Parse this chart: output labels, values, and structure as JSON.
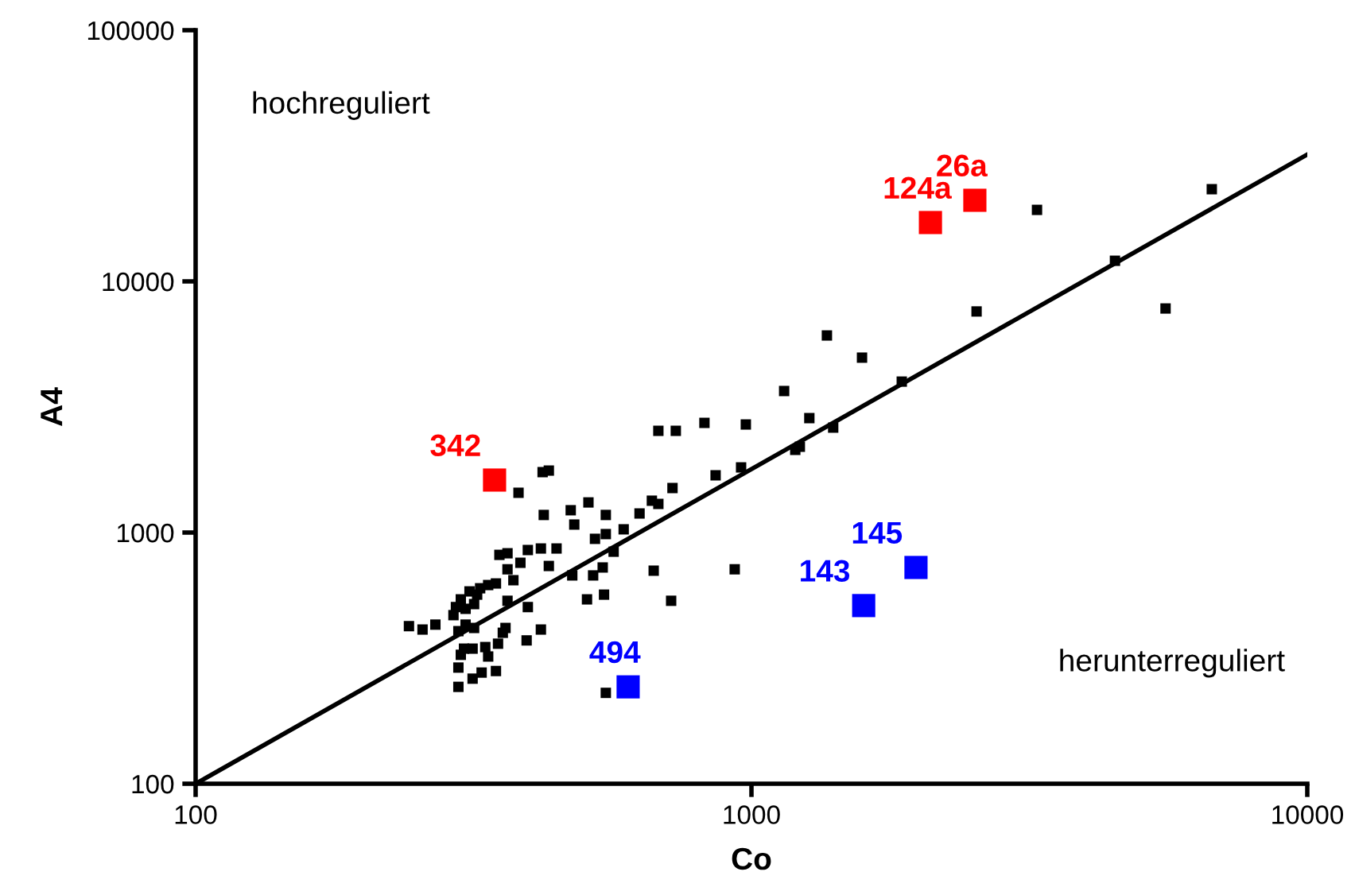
{
  "chart_data": {
    "type": "scatter",
    "xlabel": "Co",
    "ylabel": "A4",
    "log": "xy",
    "xlim": [
      100,
      10000
    ],
    "ylim": [
      100,
      100000
    ],
    "xticks": [
      100,
      1000,
      10000
    ],
    "yticks": [
      100,
      1000,
      10000,
      100000
    ],
    "grid": false,
    "marker": "square",
    "series": [
      {
        "color": "#000000",
        "x": [
          421,
          432,
          381,
          423,
          473,
          509,
          480,
          547,
          629,
          662,
          680,
          721,
          589,
          523,
          547,
          565,
          446,
          418,
          396,
          352,
          364,
          384,
          364,
          432,
          476,
          519,
          540,
          667,
          373,
          347,
          336,
          325,
          321,
          311,
          300,
          294,
          291,
          306,
          317,
          364,
          396,
          506,
          543,
          717,
          242,
          256,
          270,
          297,
          306,
          317,
          361,
          357,
          418,
          394,
          304,
          300,
          315,
          332,
          350,
          336,
          297,
          315,
          327,
          347,
          297,
          547,
          680,
          731,
          823,
          977,
          1271,
          1403,
          1199,
          1222,
          958,
          862,
          933,
          1145,
          1367,
          1581,
          1864,
          2541,
          3264,
          4508,
          5559,
          6733
        ],
        "values": [
          1740,
          1765,
          1440,
          1175,
          1227,
          1318,
          1076,
          1175,
          1191,
          1339,
          1300,
          1504,
          1030,
          944,
          986,
          839,
          864,
          864,
          852,
          815,
          827,
          758,
          714,
          736,
          675,
          675,
          726,
          705,
          646,
          627,
          618,
          600,
          566,
          583,
          542,
          505,
          469,
          497,
          519,
          535,
          505,
          542,
          566,
          535,
          424,
          411,
          430,
          405,
          430,
          417,
          417,
          399,
          411,
          372,
          345,
          326,
          345,
          350,
          361,
          321,
          290,
          262,
          277,
          281,
          243,
          230,
          2541,
          2541,
          2733,
          2693,
          2855,
          2617,
          2134,
          2196,
          1817,
          1690,
          714,
          3660,
          6090,
          4970,
          3990,
          7590,
          19260,
          12080,
          7800,
          23280
        ]
      },
      {
        "color": "#ff0000",
        "x": [
          345,
          2099,
          2523
        ],
        "values": [
          1618,
          17150,
          21030
        ]
      },
      {
        "color": "#0000ff",
        "x": [
          600,
          1592,
          1977
        ],
        "values": [
          243,
          512,
          726
        ]
      },
      {
        "type": "line",
        "marker": "none",
        "color": "#000000",
        "x": [
          100,
          10000
        ],
        "values": [
          100,
          32000
        ]
      }
    ],
    "annotations": [
      "hochreguliert",
      "herunterreguliert",
      {
        "text": "342",
        "x": 345,
        "y": 1618
      },
      {
        "text": "124a",
        "x": 2099,
        "y": 17150
      },
      {
        "text": "26a",
        "x": 2523,
        "y": 21030
      },
      {
        "text": "494",
        "x": 600,
        "y": 243
      },
      {
        "text": "143",
        "x": 1592,
        "y": 512
      },
      {
        "text": "145",
        "x": 1977,
        "y": 726
      }
    ]
  }
}
